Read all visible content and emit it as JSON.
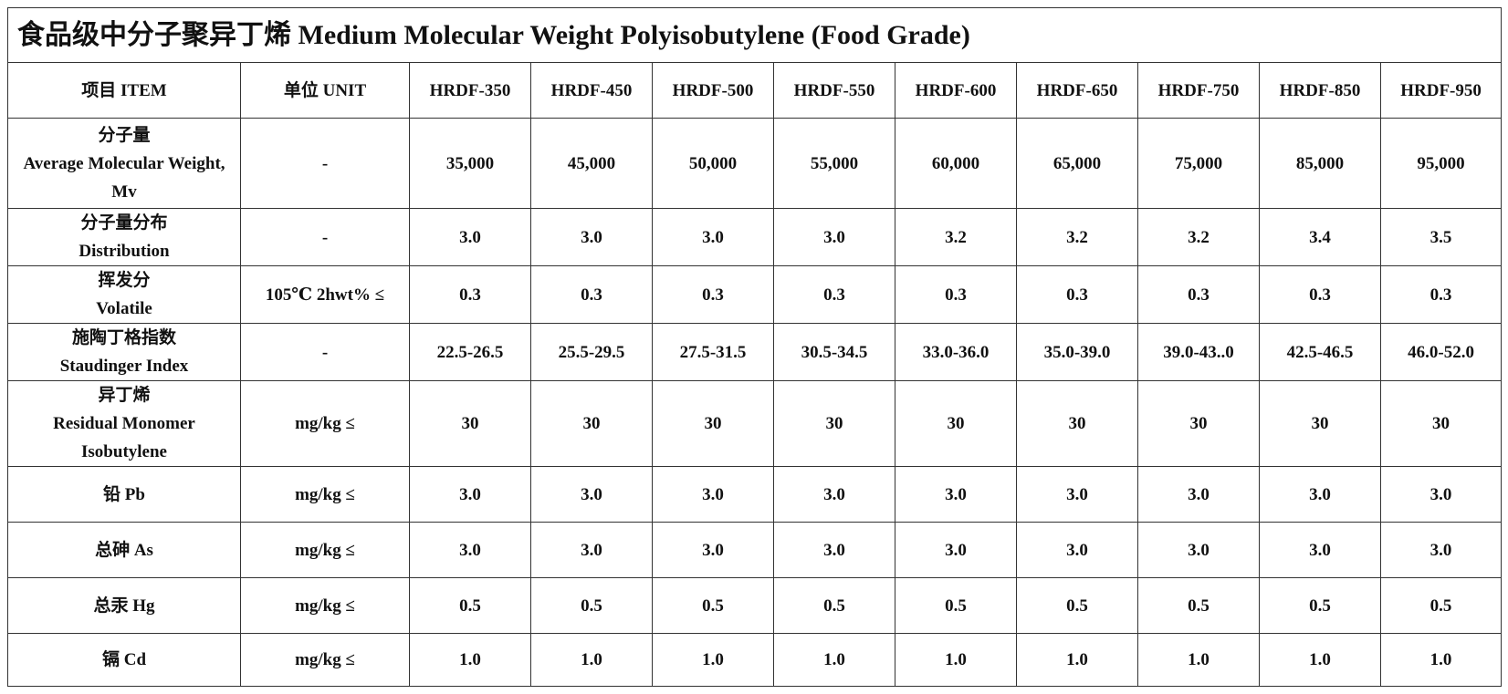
{
  "title": "食品级中分子聚异丁烯 Medium Molecular Weight Polyisobutylene (Food Grade)",
  "table": {
    "header": [
      "项目 ITEM",
      "单位  UNIT",
      "HRDF-350",
      "HRDF-450",
      "HRDF-500",
      "HRDF-550",
      "HRDF-600",
      "HRDF-650",
      "HRDF-750",
      "HRDF-850",
      "HRDF-950"
    ],
    "rows": [
      [
        "分子量\nAverage Molecular Weight, Mv",
        "-",
        "35,000",
        "45,000",
        "50,000",
        "55,000",
        "60,000",
        "65,000",
        "75,000",
        "85,000",
        "95,000"
      ],
      [
        "分子量分布\nDistribution",
        "-",
        "3.0",
        "3.0",
        "3.0",
        "3.0",
        "3.2",
        "3.2",
        "3.2",
        "3.4",
        "3.5"
      ],
      [
        "挥发分\nVolatile",
        "105℃ 2hwt% ≤",
        "0.3",
        "0.3",
        "0.3",
        "0.3",
        "0.3",
        "0.3",
        "0.3",
        "0.3",
        "0.3"
      ],
      [
        "施陶丁格指数\nStaudinger Index",
        "-",
        "22.5-26.5",
        "25.5-29.5",
        "27.5-31.5",
        "30.5-34.5",
        "33.0-36.0",
        "35.0-39.0",
        "39.0-43..0",
        "42.5-46.5",
        "46.0-52.0"
      ],
      [
        "异丁烯\nResidual Monomer Isobutylene",
        "mg/kg ≤",
        "30",
        "30",
        "30",
        "30",
        "30",
        "30",
        "30",
        "30",
        "30"
      ],
      [
        "铅 Pb",
        "mg/kg ≤",
        "3.0",
        "3.0",
        "3.0",
        "3.0",
        "3.0",
        "3.0",
        "3.0",
        "3.0",
        "3.0"
      ],
      [
        "总砷 As",
        "mg/kg ≤",
        "3.0",
        "3.0",
        "3.0",
        "3.0",
        "3.0",
        "3.0",
        "3.0",
        "3.0",
        "3.0"
      ],
      [
        "总汞 Hg",
        "mg/kg ≤",
        "0.5",
        "0.5",
        "0.5",
        "0.5",
        "0.5",
        "0.5",
        "0.5",
        "0.5",
        "0.5"
      ],
      [
        "镉 Cd",
        "mg/kg ≤",
        "1.0",
        "1.0",
        "1.0",
        "1.0",
        "1.0",
        "1.0",
        "1.0",
        "1.0",
        "1.0"
      ]
    ]
  }
}
